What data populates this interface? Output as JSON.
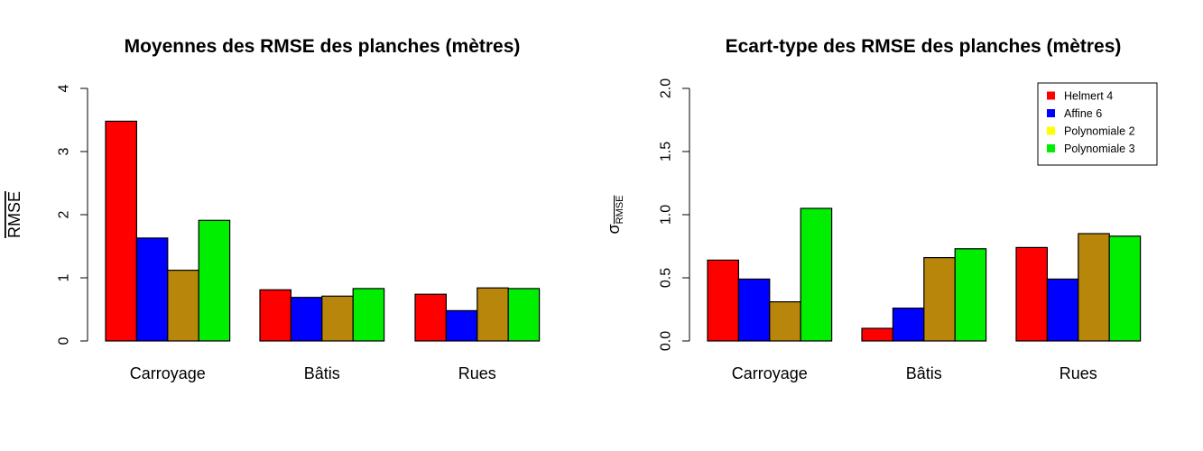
{
  "colors": {
    "Helmert 4": "#ff0000",
    "Affine 6": "#0000ff",
    "Polynomiale 2": "#b8860b",
    "Polynomiale 3": "#00ee00",
    "legend_polynomiale_2": "#ffff00"
  },
  "chart_data": [
    {
      "type": "bar",
      "title": "Moyennes des RMSE des planches  (mètres)",
      "ylabel": "RMSE",
      "ylabel_overline": true,
      "xlabel": "",
      "categories": [
        "Carroyage",
        "Bâtis",
        "Rues"
      ],
      "ylim": [
        0,
        4
      ],
      "yticks": [
        "0",
        "1",
        "2",
        "3",
        "4"
      ],
      "series": [
        {
          "values": [
            3.48,
            0.81,
            0.74
          ]
        },
        {
          "values": [
            1.63,
            0.69,
            0.48
          ]
        },
        {
          "values": [
            1.12,
            0.71,
            0.84
          ]
        },
        {
          "values": [
            1.91,
            0.83,
            0.83
          ]
        }
      ],
      "grid": false,
      "legend": null
    },
    {
      "type": "bar",
      "title": "Ecart-type des RMSE des planches (mètres)",
      "ylabel": "σ",
      "ylabel_subscript": "RMSE",
      "ylabel_subscript_overline": true,
      "xlabel": "",
      "categories": [
        "Carroyage",
        "Bâtis",
        "Rues"
      ],
      "ylim": [
        0,
        2
      ],
      "yticks": [
        "0.0",
        "0.5",
        "1.0",
        "1.5",
        "2.0"
      ],
      "series": [
        {
          "name": "Helmert 4",
          "values": [
            0.64,
            0.1,
            0.74
          ]
        },
        {
          "name": "Affine 6",
          "values": [
            0.49,
            0.26,
            0.49
          ]
        },
        {
          "name": "Polynomiale 2",
          "values": [
            0.31,
            0.66,
            0.85
          ]
        },
        {
          "name": "Polynomiale 3",
          "values": [
            1.05,
            0.73,
            0.83
          ]
        }
      ],
      "grid": false,
      "legend": "top-right"
    }
  ]
}
